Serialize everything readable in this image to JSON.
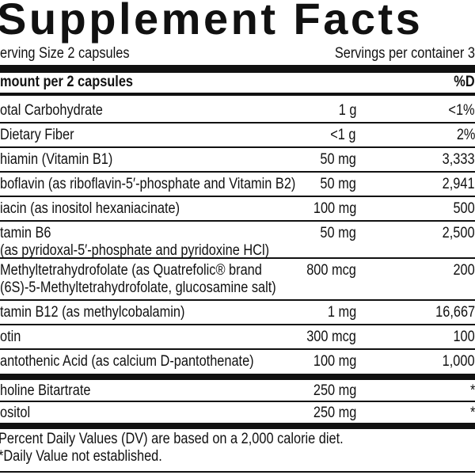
{
  "title": "Supplement Facts",
  "serving_size": "erving Size 2 capsules",
  "servings_per_container": "Servings per container 3",
  "header": {
    "amount": "mount per 2 capsules",
    "dv": "%D"
  },
  "rows": [
    {
      "name": "otal Carbohydrate",
      "amount": "1 g",
      "dv": "<1%"
    },
    {
      "name": " Dietary Fiber",
      "amount": "<1 g",
      "dv": "2%"
    },
    {
      "name": "hiamin (Vitamin B1)",
      "amount": "50 mg",
      "dv": "3,333"
    },
    {
      "name": "boflavin (as riboflavin-5′-phosphate and Vitamin B2)",
      "amount": "50 mg",
      "dv": "2,941"
    },
    {
      "name": "iacin (as inositol hexaniacinate)",
      "amount": "100 mg",
      "dv": "500"
    },
    {
      "name": "tamin B6",
      "name2": "(as pyridoxal-5′-phosphate and pyridoxine HCl)",
      "amount": "50 mg",
      "dv": "2,500"
    },
    {
      "name": "Methyltetrahydrofolate (as Quatrefolic® brand",
      "name2": "(6S)-5-Methyltetrahydrofolate, glucosamine salt)",
      "amount": "800 mcg",
      "dv": "200"
    },
    {
      "name": "tamin B12 (as methylcobalamin)",
      "amount": "1 mg",
      "dv": "16,667"
    },
    {
      "name": "otin",
      "amount": "300 mcg",
      "dv": "100"
    },
    {
      "name": "antothenic Acid (as calcium D-pantothenate)",
      "amount": "100 mg",
      "dv": "1,000"
    }
  ],
  "other_rows": [
    {
      "name": "holine Bitartrate",
      "amount": "250 mg",
      "dv": "*"
    },
    {
      "name": "ositol",
      "amount": "250 mg",
      "dv": "*"
    }
  ],
  "footnotes": [
    "Percent Daily Values (DV) are based on a 2,000 calorie diet.",
    "*Daily Value not established."
  ]
}
